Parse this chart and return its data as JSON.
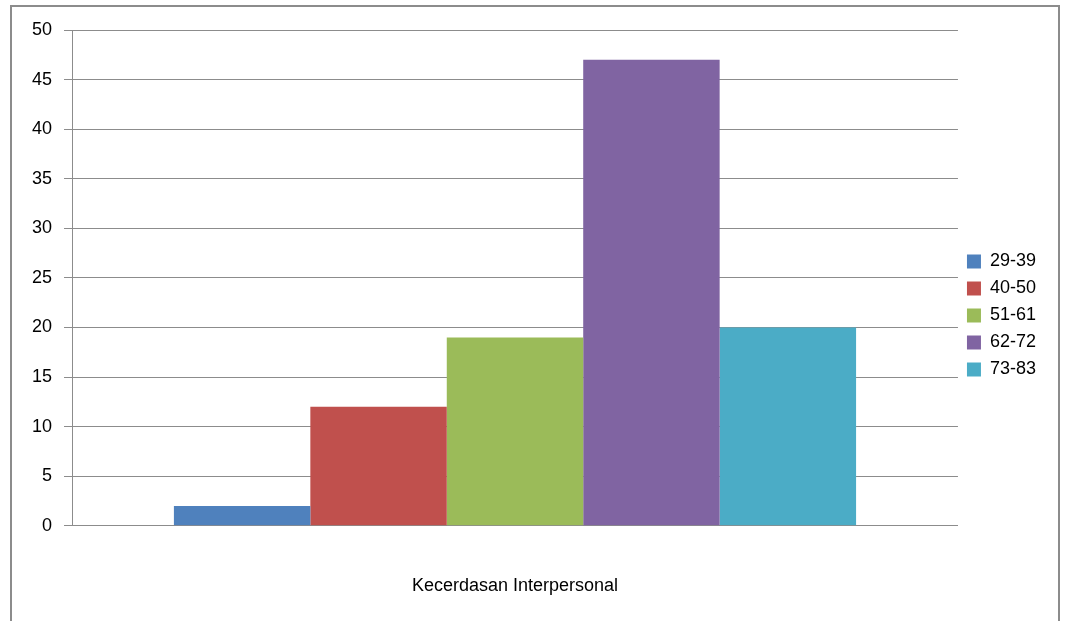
{
  "chart_data": {
    "type": "bar",
    "xlabel": "Kecerdasan Interpersonal",
    "categories": [
      null
    ],
    "series": [
      {
        "name": "29-39",
        "color": "#4f81bd",
        "values": [
          2
        ]
      },
      {
        "name": "40-50",
        "color": "#c0504d",
        "values": [
          12
        ]
      },
      {
        "name": "51-61",
        "color": "#9bbb59",
        "values": [
          19
        ]
      },
      {
        "name": "62-72",
        "color": "#8064a2",
        "values": [
          47
        ]
      },
      {
        "name": "73-83",
        "color": "#4bacc6",
        "values": [
          20
        ]
      }
    ],
    "ylim": [
      0,
      50
    ],
    "yticks": [
      0,
      5,
      10,
      15,
      20,
      25,
      30,
      35,
      40,
      45,
      50
    ],
    "grid": "y",
    "legend": "right"
  }
}
